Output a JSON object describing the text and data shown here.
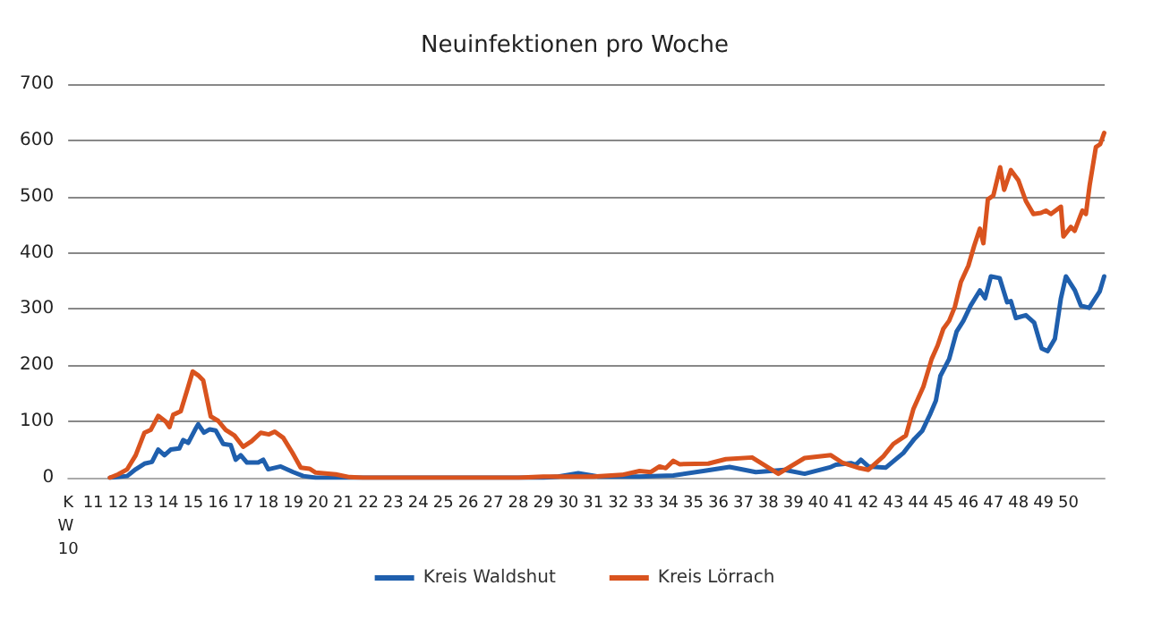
{
  "chart_data": {
    "type": "line",
    "title": "Neuinfektionen pro Woche",
    "xlim": [
      10,
      51.45
    ],
    "xticks": [
      {
        "value": 10,
        "label": "KW 10"
      },
      11,
      12,
      13,
      14,
      15,
      16,
      17,
      18,
      19,
      20,
      21,
      22,
      23,
      24,
      25,
      26,
      27,
      28,
      29,
      30,
      31,
      32,
      33,
      34,
      35,
      36,
      37,
      38,
      39,
      40,
      41,
      42,
      43,
      44,
      45,
      46,
      47,
      48,
      49,
      50
    ],
    "ylim": [
      0,
      700
    ],
    "yticks": [
      0,
      100,
      200,
      300,
      400,
      500,
      600,
      700
    ],
    "grid": "y",
    "legend": "bottom",
    "marker": "none",
    "line_style": "solid",
    "series": [
      {
        "name": "Kreis Waldshut",
        "color": "#1f5fad",
        "x": [
          11.67,
          12.36,
          12.7,
          13.05,
          13.35,
          13.6,
          13.85,
          14.1,
          14.44,
          14.6,
          14.8,
          15.07,
          15.2,
          15.43,
          15.66,
          15.9,
          16.2,
          16.5,
          16.7,
          16.9,
          17.15,
          17.6,
          17.8,
          18.0,
          18.5,
          19.0,
          19.4,
          19.9,
          29.0,
          29.6,
          30.4,
          31.2,
          32.85,
          34.2,
          35.4,
          36.45,
          37.5,
          38.65,
          39.45,
          40.5,
          40.7,
          41.3,
          41.5,
          41.7,
          42.0,
          42.7,
          43.4,
          43.84,
          44.15,
          44.47,
          44.7,
          44.88,
          45.23,
          45.53,
          45.8,
          46.09,
          46.46,
          46.67,
          46.9,
          47.25,
          47.55,
          47.7,
          47.9,
          48.3,
          48.63,
          48.93,
          49.17,
          49.46,
          49.7,
          49.9,
          50.26,
          50.5,
          50.83,
          51.25,
          51.43
        ],
        "values": [
          0,
          3,
          15,
          25,
          28,
          50,
          40,
          50,
          52,
          67,
          62,
          85,
          95,
          80,
          86,
          84,
          60,
          58,
          32,
          40,
          27,
          27,
          32,
          15,
          20,
          10,
          3,
          0,
          0,
          2,
          8,
          2,
          2,
          4,
          12,
          19,
          10,
          14,
          7,
          19,
          23,
          26,
          23,
          32,
          20,
          18,
          44,
          69,
          83,
          113,
          137,
          181,
          211,
          260,
          279,
          306,
          333,
          319,
          358,
          355,
          312,
          314,
          284,
          289,
          276,
          230,
          225,
          247,
          319,
          358,
          333,
          306,
          302,
          331,
          358
        ]
      },
      {
        "name": "Kreis Lörrach",
        "color": "#d9531e",
        "x": [
          11.67,
          12.0,
          12.36,
          12.7,
          13.05,
          13.3,
          13.6,
          13.9,
          14.05,
          14.2,
          14.5,
          14.8,
          14.98,
          15.2,
          15.4,
          15.7,
          16.0,
          16.3,
          16.65,
          17.0,
          17.34,
          17.7,
          18.03,
          18.26,
          18.6,
          18.96,
          19.3,
          19.65,
          19.9,
          20.7,
          21.25,
          21.8,
          28.0,
          29.0,
          31.0,
          32.15,
          32.85,
          33.3,
          33.65,
          33.9,
          34.2,
          34.45,
          35.6,
          36.3,
          37.35,
          38.4,
          39.45,
          40.5,
          40.95,
          41.65,
          42.0,
          42.6,
          43.0,
          43.5,
          43.8,
          44.2,
          44.53,
          44.77,
          45.0,
          45.23,
          45.46,
          45.7,
          46.0,
          46.23,
          46.46,
          46.6,
          46.78,
          47.0,
          47.27,
          47.43,
          47.7,
          48.0,
          48.3,
          48.6,
          48.9,
          49.1,
          49.3,
          49.7,
          49.8,
          50.1,
          50.25,
          50.56,
          50.7,
          50.85,
          51.1,
          51.27,
          51.43
        ],
        "values": [
          0,
          6,
          15,
          40,
          80,
          85,
          110,
          100,
          90,
          112,
          118,
          162,
          189,
          182,
          173,
          109,
          101,
          85,
          75,
          55,
          65,
          80,
          77,
          82,
          71,
          45,
          18,
          16,
          9,
          6,
          1,
          0,
          0,
          2,
          2,
          5,
          12,
          10,
          20,
          17,
          30,
          24,
          25,
          33,
          36,
          7,
          35,
          40,
          27,
          17,
          14,
          38,
          60,
          75,
          122,
          162,
          211,
          235,
          265,
          279,
          304,
          348,
          377,
          412,
          443,
          417,
          495,
          502,
          552,
          512,
          547,
          529,
          492,
          469,
          471,
          475,
          469,
          482,
          429,
          446,
          439,
          475,
          469,
          520,
          588,
          593,
          613
        ]
      }
    ]
  }
}
